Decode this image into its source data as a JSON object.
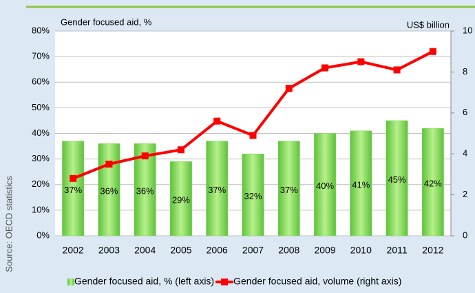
{
  "chart_data": {
    "type": "bar_line",
    "y_title": "Gender focused aid, %",
    "y2_title": "US$ billion",
    "source": "Source: OECD statistics",
    "categories": [
      "2002",
      "2003",
      "2004",
      "2005",
      "2006",
      "2007",
      "2008",
      "2009",
      "2010",
      "2011",
      "2012"
    ],
    "series": [
      {
        "name": "Gender focused aid, % (left axis)",
        "type": "bar",
        "axis": "y",
        "color": "#7fd957",
        "values": [
          37,
          36,
          36,
          29,
          37,
          32,
          37,
          40,
          41,
          45,
          42
        ],
        "value_labels": [
          "37%",
          "36%",
          "36%",
          "29%",
          "37%",
          "32%",
          "37%",
          "40%",
          "41%",
          "45%",
          "42%"
        ]
      },
      {
        "name": "Gender focused aid, volume (right axis)",
        "type": "line",
        "axis": "y2",
        "color": "#ff0000",
        "values": [
          2.8,
          3.5,
          3.9,
          4.2,
          5.6,
          4.9,
          7.2,
          8.2,
          8.5,
          8.1,
          9.0
        ]
      }
    ],
    "ylim": [
      0,
      80
    ],
    "yticks": [
      {
        "value": 0,
        "label": "0%"
      },
      {
        "value": 10,
        "label": "10%"
      },
      {
        "value": 20,
        "label": "20%"
      },
      {
        "value": 30,
        "label": "30%"
      },
      {
        "value": 40,
        "label": "40%"
      },
      {
        "value": 50,
        "label": "50%"
      },
      {
        "value": 60,
        "label": "60%"
      },
      {
        "value": 70,
        "label": "70%"
      },
      {
        "value": 80,
        "label": "80%"
      }
    ],
    "y2lim": [
      0,
      10
    ],
    "y2ticks": [
      0,
      2,
      4,
      6,
      8,
      10
    ],
    "grid": true,
    "legend": "bottom"
  }
}
